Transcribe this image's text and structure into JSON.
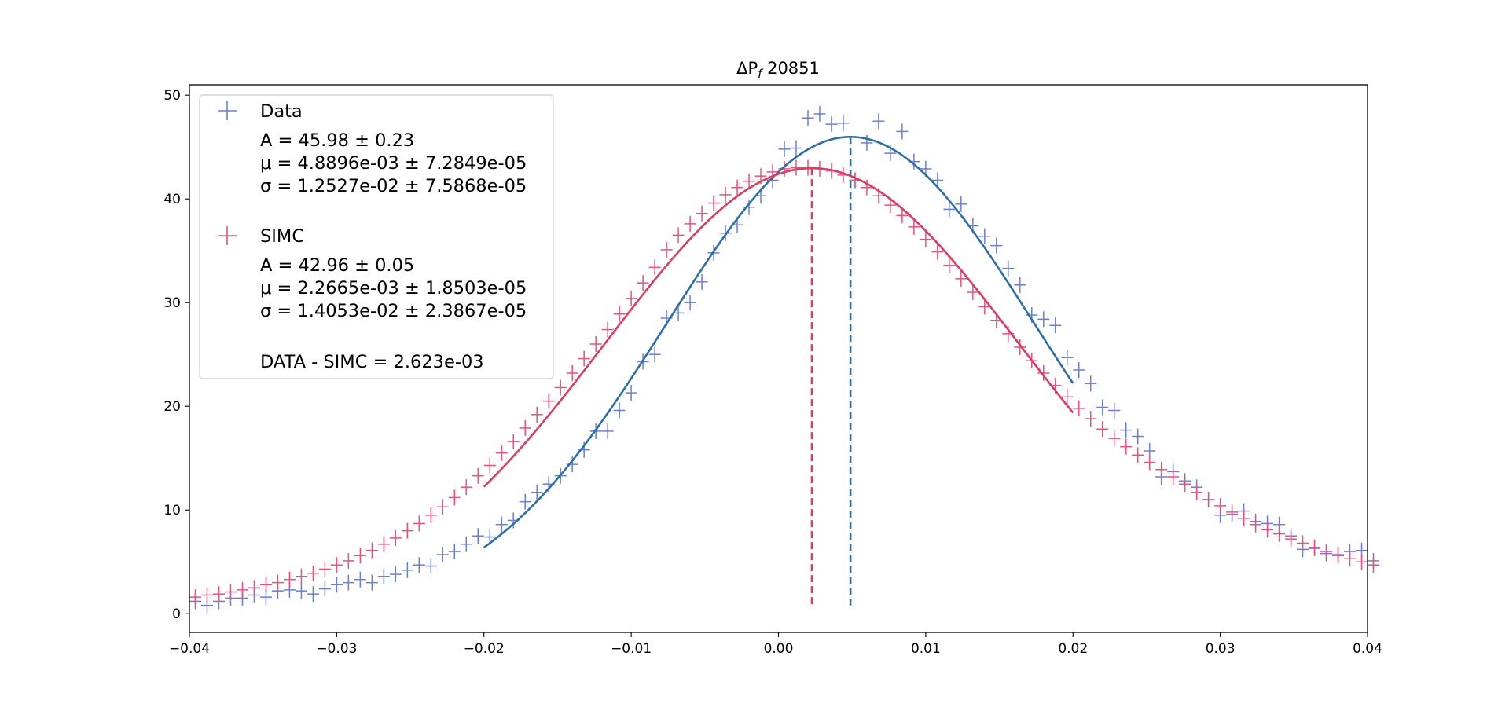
{
  "chart_data": {
    "type": "scatter",
    "title_prefix": "ΔP",
    "title_sub": "f",
    "title_suffix": " 20851",
    "xlim": [
      -0.04,
      0.04
    ],
    "ylim": [
      -1.8,
      51.0
    ],
    "x_ticks": [
      -0.04,
      -0.03,
      -0.02,
      -0.01,
      0.0,
      0.01,
      0.02,
      0.03,
      0.04
    ],
    "x_tick_labels": [
      "−0.04",
      "−0.03",
      "−0.02",
      "−0.01",
      "0.00",
      "0.01",
      "0.02",
      "0.03",
      "0.04"
    ],
    "y_ticks": [
      0,
      10,
      20,
      30,
      40,
      50
    ],
    "y_tick_labels": [
      "0",
      "10",
      "20",
      "30",
      "40",
      "50"
    ],
    "grid": false,
    "legend_position": "upper left",
    "bin_width": 0.0008,
    "x_start": -0.0396,
    "fit_range": [
      -0.02,
      0.02
    ],
    "colors": {
      "data_points": "#6b7fd1",
      "data_fit": "#2f6fa6",
      "simc_points": "#e8517d",
      "simc_fit": "#d93d60"
    },
    "series": [
      {
        "name": "Data",
        "role": "data",
        "y": [
          1.2,
          0.8,
          1.2,
          1.5,
          1.5,
          1.8,
          1.6,
          2.2,
          2.3,
          2.2,
          1.9,
          2.4,
          2.8,
          3.0,
          3.3,
          3.0,
          3.6,
          3.8,
          4.2,
          4.7,
          4.6,
          5.7,
          6.0,
          6.7,
          7.5,
          7.4,
          8.6,
          9.0,
          10.8,
          11.7,
          12.5,
          13.3,
          14.4,
          15.8,
          17.6,
          17.6,
          19.6,
          21.3,
          24.3,
          25.0,
          28.5,
          29.0,
          30.0,
          32.0,
          34.8,
          36.7,
          37.5,
          39.2,
          40.3,
          41.8,
          44.8,
          44.9,
          47.8,
          48.2,
          47.2,
          47.3,
          41.8,
          45.4,
          47.5,
          44.4,
          46.5,
          43.6,
          42.9,
          41.8,
          39.0,
          39.5,
          37.4,
          36.4,
          35.5,
          33.3,
          31.7,
          28.8,
          28.4,
          27.8,
          24.7,
          23.5,
          22.2,
          19.9,
          19.6,
          17.7,
          17.1,
          15.7,
          13.2,
          13.7,
          12.8,
          12.2,
          11.0,
          9.5,
          9.6,
          9.9,
          8.9,
          8.7,
          8.6,
          7.5,
          6.2,
          6.3,
          5.8,
          5.7,
          6.0,
          6.1,
          5.1
        ]
      },
      {
        "name": "SIMC",
        "role": "simc",
        "y": [
          1.6,
          1.8,
          1.9,
          2.1,
          2.3,
          2.5,
          2.8,
          3.0,
          3.3,
          3.6,
          3.9,
          4.3,
          4.7,
          5.1,
          5.6,
          6.1,
          6.7,
          7.3,
          8.0,
          8.7,
          9.5,
          10.3,
          11.2,
          12.2,
          13.3,
          14.3,
          15.5,
          16.6,
          17.9,
          19.2,
          20.5,
          21.8,
          23.2,
          24.6,
          26.0,
          27.4,
          28.9,
          30.4,
          31.9,
          33.4,
          35.1,
          36.5,
          37.6,
          38.6,
          39.6,
          40.4,
          41.1,
          41.7,
          42.2,
          42.6,
          42.9,
          43.0,
          43.0,
          42.9,
          42.7,
          42.3,
          41.8,
          41.1,
          40.3,
          39.4,
          38.4,
          37.3,
          36.1,
          34.9,
          33.6,
          32.3,
          31.0,
          29.6,
          28.3,
          27.0,
          25.7,
          24.4,
          23.2,
          22.0,
          20.9,
          19.8,
          18.8,
          17.8,
          16.9,
          16.1,
          15.3,
          14.6,
          13.9,
          13.2,
          12.5,
          11.7,
          11.0,
          10.4,
          9.8,
          9.2,
          8.6,
          8.1,
          7.7,
          7.2,
          6.8,
          6.4,
          6.0,
          5.6,
          5.3,
          5.0,
          4.7
        ]
      }
    ],
    "fits": [
      {
        "series": "Data",
        "A": 45.98,
        "mu": 0.0048896,
        "sigma": 0.012527
      },
      {
        "series": "SIMC",
        "A": 42.96,
        "mu": 0.0022665,
        "sigma": 0.014053
      }
    ],
    "legend": {
      "data_label": "Data",
      "data_lines": [
        "A = 45.98 ± 0.23",
        "μ = 4.8896e-03 ± 7.2849e-05",
        "σ = 1.2527e-02 ± 7.5868e-05"
      ],
      "simc_label": "SIMC",
      "simc_lines": [
        "A = 42.96 ± 0.05",
        "μ = 2.2665e-03 ± 1.8503e-05",
        "σ = 1.4053e-02 ± 2.3867e-05"
      ],
      "diff_line": "DATA - SIMC = 2.623e-03"
    }
  }
}
